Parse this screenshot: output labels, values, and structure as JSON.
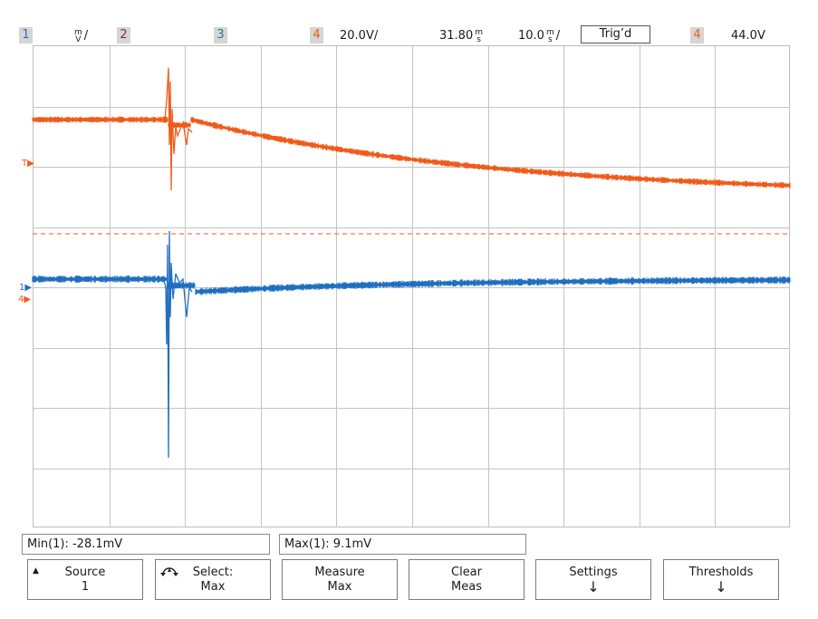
{
  "status_bar": {
    "ch1_tag": "1",
    "ch1_scale_unit_top": "m",
    "ch1_scale_unit_bottom": "V",
    "ch1_scale_suffix": "/",
    "ch2_tag": "2",
    "ch3_tag": "3",
    "ch4_tag": "4",
    "ch4_scale": "20.0V/",
    "trigger_position_value": "31.80",
    "trigger_position_unit_top": "m",
    "trigger_position_unit_bottom": "s",
    "timebase_value": "10.0",
    "timebase_unit_top": "m",
    "timebase_unit_bottom": "s",
    "timebase_suffix": "/",
    "trigger_state": "Trig’d",
    "trigger_source_tag": "4",
    "trigger_level": "44.0V"
  },
  "markers": {
    "trigger_marker": "T",
    "ch1_marker": "1",
    "ch4_marker": "4"
  },
  "colors": {
    "ch1": "#1f6fc0",
    "ch2": "#7a2a68",
    "ch3": "#1e7e86",
    "ch4": "#f05a1a",
    "grid": "#c4c4c4"
  },
  "measurements": {
    "min_label": "Min(1): -28.1mV",
    "max_label": "Max(1): 9.1mV"
  },
  "softkeys": {
    "source_label": "Source",
    "source_value": "1",
    "select_label": "Select:",
    "select_value": "Max",
    "measure_label": "Measure",
    "measure_value": "Max",
    "clear_label": "Clear",
    "clear_value": "Meas",
    "settings_label": "Settings",
    "thresholds_label": "Thresholds",
    "arrow_up_icon": "triangle-up-icon",
    "rotate_icon": "knob-rotate-icon",
    "arrow_down_icon": "arrow-down-icon"
  }
}
